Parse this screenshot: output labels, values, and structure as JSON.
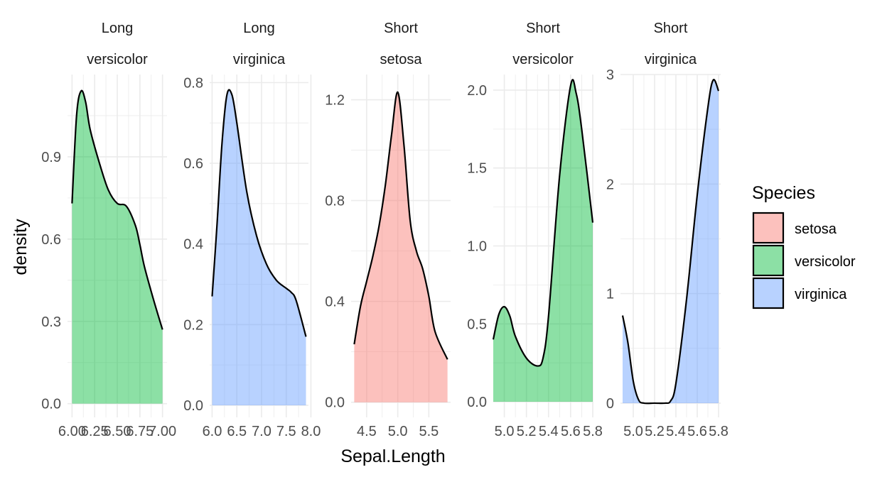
{
  "chart_data": {
    "type": "area",
    "xlabel": "Sepal.Length",
    "ylabel": "density",
    "legend": {
      "title": "Species",
      "position": "right",
      "entries": [
        {
          "label": "setosa",
          "color": "#F8766D"
        },
        {
          "label": "versicolor",
          "color": "#00BA38"
        },
        {
          "label": "virginica",
          "color": "#619CFF"
        }
      ]
    },
    "fill_alpha": 0.45,
    "panels": [
      {
        "strip": [
          "Long",
          "versicolor"
        ],
        "species": "versicolor",
        "xlim": [
          5.95,
          7.05
        ],
        "ylim": [
          -0.05,
          1.2
        ],
        "x_ticks": [
          6.0,
          6.25,
          6.5,
          6.75,
          7.0
        ],
        "x_tick_labels": [
          "6.00",
          "6.25",
          "6.50",
          "6.75",
          "7.00"
        ],
        "y_ticks": [
          0.0,
          0.3,
          0.6,
          0.9
        ],
        "y_tick_labels": [
          "0.0",
          "0.3",
          "0.6",
          "0.9"
        ],
        "x": [
          6.0,
          6.05,
          6.1,
          6.15,
          6.2,
          6.3,
          6.4,
          6.5,
          6.6,
          6.7,
          6.75,
          6.8,
          6.9,
          7.0
        ],
        "y": [
          0.73,
          1.05,
          1.14,
          1.1,
          1.0,
          0.88,
          0.78,
          0.73,
          0.72,
          0.65,
          0.58,
          0.5,
          0.38,
          0.27
        ]
      },
      {
        "strip": [
          "Long",
          "virginica"
        ],
        "species": "virginica",
        "xlim": [
          5.95,
          7.95
        ],
        "ylim": [
          -0.03,
          0.82
        ],
        "x_ticks": [
          6.0,
          6.5,
          7.0,
          7.5,
          8.0
        ],
        "x_tick_labels": [
          "6.0",
          "6.5",
          "7.0",
          "7.5",
          "8.0"
        ],
        "y_ticks": [
          0.0,
          0.2,
          0.4,
          0.6,
          0.8
        ],
        "y_tick_labels": [
          "0.0",
          "0.2",
          "0.4",
          "0.6",
          "0.8"
        ],
        "x": [
          6.0,
          6.1,
          6.2,
          6.3,
          6.4,
          6.5,
          6.7,
          6.9,
          7.1,
          7.3,
          7.5,
          7.6,
          7.7,
          7.9
        ],
        "y": [
          0.27,
          0.45,
          0.65,
          0.77,
          0.77,
          0.7,
          0.53,
          0.42,
          0.35,
          0.31,
          0.29,
          0.28,
          0.26,
          0.17
        ]
      },
      {
        "strip": [
          "Short",
          "setosa"
        ],
        "species": "setosa",
        "xlim": [
          4.25,
          5.85
        ],
        "ylim": [
          -0.06,
          1.3
        ],
        "x_ticks": [
          4.5,
          5.0,
          5.5
        ],
        "x_tick_labels": [
          "4.5",
          "5.0",
          "5.5"
        ],
        "y_ticks": [
          0.0,
          0.4,
          0.8,
          1.2
        ],
        "y_tick_labels": [
          "0.0",
          "0.4",
          "0.8",
          "1.2"
        ],
        "x": [
          4.3,
          4.4,
          4.5,
          4.6,
          4.7,
          4.8,
          4.9,
          5.0,
          5.1,
          5.2,
          5.3,
          5.4,
          5.5,
          5.6,
          5.8
        ],
        "y": [
          0.23,
          0.38,
          0.48,
          0.58,
          0.7,
          0.86,
          1.06,
          1.23,
          1.02,
          0.72,
          0.6,
          0.53,
          0.42,
          0.28,
          0.17
        ]
      },
      {
        "strip": [
          "Short",
          "versicolor"
        ],
        "species": "versicolor",
        "xlim": [
          4.9,
          5.8
        ],
        "ylim": [
          -0.1,
          2.1
        ],
        "x_ticks": [
          5.0,
          5.2,
          5.4,
          5.6,
          5.8
        ],
        "x_tick_labels": [
          "5.0",
          "5.2",
          "5.4",
          "5.6",
          "5.8"
        ],
        "y_ticks": [
          0.0,
          0.5,
          1.0,
          1.5,
          2.0
        ],
        "y_tick_labels": [
          "0.0",
          "0.5",
          "1.0",
          "1.5",
          "2.0"
        ],
        "x": [
          4.9,
          4.95,
          5.0,
          5.05,
          5.1,
          5.2,
          5.3,
          5.35,
          5.4,
          5.5,
          5.6,
          5.65,
          5.7,
          5.8
        ],
        "y": [
          0.4,
          0.56,
          0.61,
          0.55,
          0.42,
          0.28,
          0.23,
          0.28,
          0.55,
          1.45,
          2.03,
          1.98,
          1.75,
          1.15
        ]
      },
      {
        "strip": [
          "Short",
          "virginica"
        ],
        "species": "virginica",
        "xlim": [
          4.88,
          5.82
        ],
        "ylim": [
          -0.13,
          3.0
        ],
        "x_ticks": [
          5.0,
          5.2,
          5.4,
          5.6,
          5.8
        ],
        "x_tick_labels": [
          "5.0",
          "5.2",
          "5.4",
          "5.6",
          "5.8"
        ],
        "y_ticks": [
          0,
          1,
          2,
          3
        ],
        "y_tick_labels": [
          "0",
          "1",
          "2",
          "3"
        ],
        "x": [
          4.9,
          4.95,
          5.0,
          5.05,
          5.1,
          5.2,
          5.3,
          5.35,
          5.4,
          5.5,
          5.6,
          5.7,
          5.75,
          5.8
        ],
        "y": [
          0.8,
          0.55,
          0.2,
          0.03,
          0.0,
          0.0,
          0.0,
          0.02,
          0.18,
          0.95,
          1.9,
          2.7,
          2.95,
          2.85
        ]
      }
    ]
  }
}
